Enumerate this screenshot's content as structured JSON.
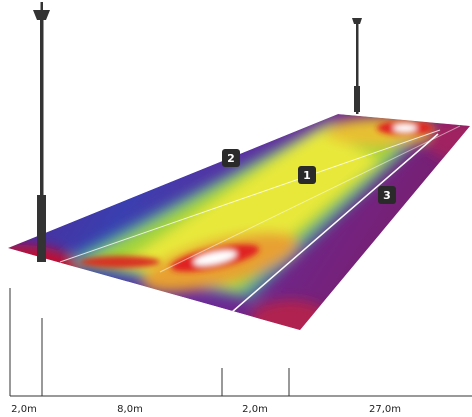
{
  "markers": [
    "1",
    "2",
    "3"
  ],
  "dimensions": [
    "2,0m",
    "8,0m",
    "2,0m",
    "27,0m"
  ]
}
